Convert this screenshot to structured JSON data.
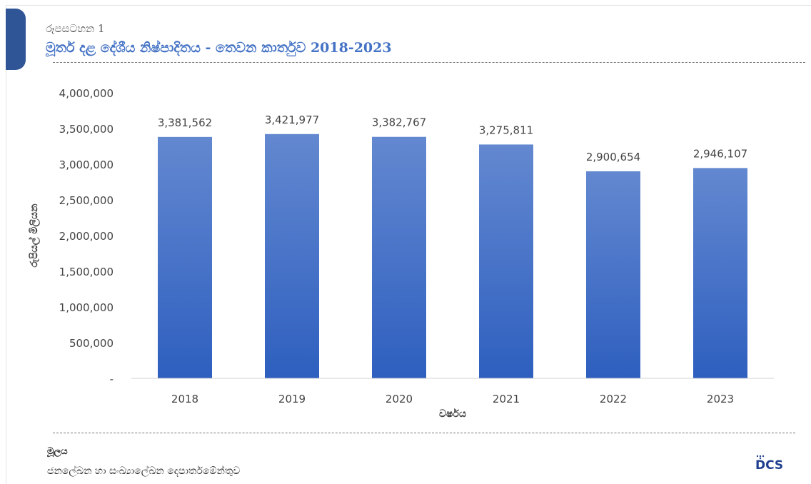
{
  "figure": {
    "label": "රූපසටහන 1",
    "title": "මූර්ත දළ දේශීය නිෂ්පාදිතය - තෙවන කාර්තුව 2018-2023"
  },
  "chart_data": {
    "type": "bar",
    "title": "",
    "xlabel": "වර්ෂය",
    "ylabel": "රුපියල් මිලියන",
    "categories": [
      "2018",
      "2019",
      "2020",
      "2021",
      "2022",
      "2023"
    ],
    "values": [
      3381562,
      3421977,
      3382767,
      3275811,
      2900654,
      2946107
    ],
    "value_labels": [
      "3,381,562",
      "3,421,977",
      "3,382,767",
      "3,275,811",
      "2,900,654",
      "2,946,107"
    ],
    "ylim": [
      0,
      4000000
    ],
    "yticks": [
      0,
      500000,
      1000000,
      1500000,
      2000000,
      2500000,
      3000000,
      3500000,
      4000000
    ],
    "ytick_labels": [
      "-",
      "500,000",
      "1,000,000",
      "1,500,000",
      "2,000,000",
      "2,500,000",
      "3,000,000",
      "3,500,000",
      "4,000,000"
    ],
    "grid": false,
    "legend": "none",
    "bar_color_top": "#6388d0",
    "bar_color_bottom": "#2e5fbf"
  },
  "source": {
    "label": "මූලය",
    "text": "ජනලේඛන හා සංඛ්‍යාලේඛන දෙපාර්තමේන්තුව"
  },
  "logo": {
    "text": "DCS",
    "color": "#1f3f8f"
  }
}
